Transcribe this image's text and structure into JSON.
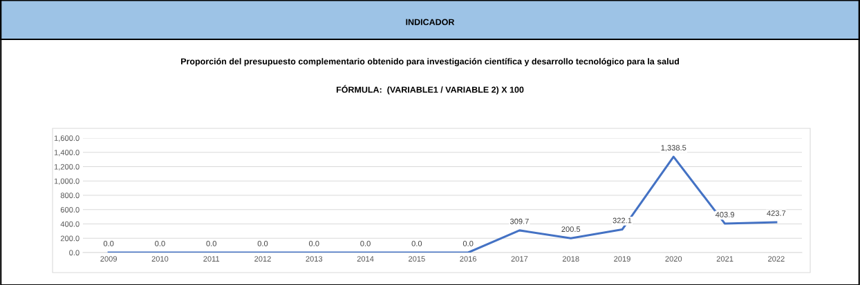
{
  "chart_data": {
    "type": "line",
    "title": "INDICADOR",
    "subtitle": "Proporción del presupuesto complementario obtenido para investigación científica y desarrollo tecnológico para la salud",
    "annotations": [
      "FÓRMULA:  (VARIABLE1 / VARIABLE 2) X 100"
    ],
    "categories": [
      "2009",
      "2010",
      "2011",
      "2012",
      "2013",
      "2014",
      "2015",
      "2016",
      "2017",
      "2018",
      "2019",
      "2020",
      "2021",
      "2022"
    ],
    "series": [
      {
        "color": "#4472c4",
        "values": [
          0.0,
          0.0,
          0.0,
          0.0,
          0.0,
          0.0,
          0.0,
          0.0,
          309.7,
          200.5,
          322.1,
          1338.5,
          403.9,
          423.7
        ],
        "value_labels": [
          "0.0",
          "0.0",
          "0.0",
          "0.0",
          "0.0",
          "0.0",
          "0.0",
          "0.0",
          "309.7",
          "200.5",
          "322.1",
          "1,338.5",
          "403.9",
          "423.7"
        ]
      }
    ],
    "ylim": [
      0,
      1600
    ],
    "yticks": [
      {
        "value": 0,
        "label": "0.0"
      },
      {
        "value": 200,
        "label": "200.0"
      },
      {
        "value": 400,
        "label": "400.0"
      },
      {
        "value": 600,
        "label": "600.0"
      },
      {
        "value": 800,
        "label": "800.0"
      },
      {
        "value": 1000,
        "label": "1,000.0"
      },
      {
        "value": 1200,
        "label": "1,200.0"
      },
      {
        "value": 1400,
        "label": "1,400.0"
      },
      {
        "value": 1600,
        "label": "1,600.0"
      }
    ],
    "grid": "y",
    "marker": "none",
    "line_style": "solid"
  }
}
